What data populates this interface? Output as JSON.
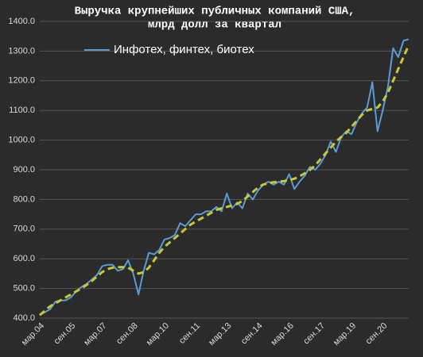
{
  "chart_data": {
    "type": "line",
    "title": [
      "Выручка крупнейших публичных компаний США,",
      "млрд долл за квартал"
    ],
    "categories": [
      "мар.04",
      null,
      null,
      null,
      null,
      null,
      "сен.05",
      null,
      null,
      null,
      null,
      null,
      "мар.07",
      null,
      null,
      null,
      null,
      null,
      "сен.08",
      null,
      null,
      null,
      null,
      null,
      "мар.10",
      null,
      null,
      null,
      null,
      null,
      "сен.11",
      null,
      null,
      null,
      null,
      null,
      "мар.13",
      null,
      null,
      null,
      null,
      null,
      "сен.14",
      null,
      null,
      null,
      null,
      null,
      "мар.16",
      null,
      null,
      null,
      null,
      null,
      "сен.17",
      null,
      null,
      null,
      null,
      null,
      "мар.19",
      null,
      null,
      null,
      null,
      null,
      "сен.20",
      null,
      null,
      null,
      null,
      null
    ],
    "series": [
      {
        "name": "Инфотех, финтех, биотех",
        "color": "#5b9bd5",
        "values": [
          410,
          420,
          430,
          455,
          460,
          460,
          470,
          490,
          505,
          515,
          530,
          545,
          575,
          580,
          580,
          560,
          565,
          595,
          550,
          480,
          560,
          620,
          615,
          630,
          665,
          670,
          680,
          720,
          710,
          730,
          750,
          750,
          760,
          760,
          775,
          760,
          820,
          770,
          790,
          770,
          820,
          800,
          830,
          850,
          860,
          850,
          860,
          850,
          885,
          835,
          860,
          880,
          910,
          900,
          920,
          950,
          995,
          960,
          1010,
          1030,
          1020,
          1060,
          1090,
          1110,
          1195,
          1030,
          1100,
          1180,
          1310,
          1280,
          1335,
          1340
        ]
      },
      {
        "color": "#c8c832",
        "dashed": true,
        "values": [
          410,
          425,
          440,
          450,
          460,
          470,
          480,
          490,
          500,
          512,
          525,
          540,
          555,
          565,
          570,
          572,
          572,
          570,
          560,
          550,
          555,
          570,
          595,
          620,
          640,
          655,
          670,
          685,
          700,
          715,
          725,
          735,
          745,
          755,
          765,
          770,
          775,
          780,
          785,
          795,
          810,
          825,
          840,
          850,
          855,
          858,
          860,
          862,
          865,
          870,
          878,
          888,
          900,
          915,
          935,
          955,
          975,
          995,
          1010,
          1025,
          1045,
          1065,
          1085,
          1100,
          1105,
          1110,
          1130,
          1160,
          1200,
          1240,
          1280,
          1320
        ]
      }
    ],
    "ylim": [
      400,
      1400
    ],
    "yticks": [
      {
        "value": 400,
        "label": "400.0"
      },
      {
        "value": 500,
        "label": "500.0"
      },
      {
        "value": 600,
        "label": "600.0"
      },
      {
        "value": 700,
        "label": "700.0"
      },
      {
        "value": 800,
        "label": "800.0"
      },
      {
        "value": 900,
        "label": "900.0"
      },
      {
        "value": 1000,
        "label": "1000.0"
      },
      {
        "value": 1100,
        "label": "1100.0"
      },
      {
        "value": 1200,
        "label": "1200.0"
      },
      {
        "value": 1300,
        "label": "1300.0"
      },
      {
        "value": 1400,
        "label": "1400.0"
      }
    ],
    "grid": true
  }
}
